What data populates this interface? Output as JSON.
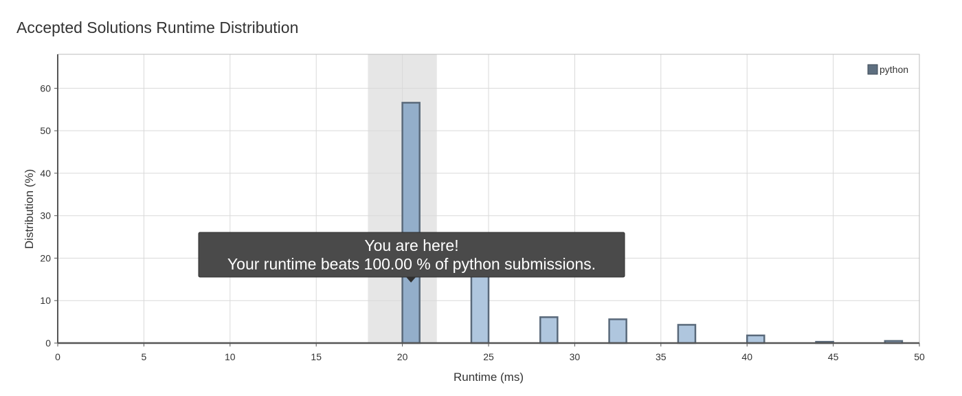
{
  "chart_data": {
    "type": "bar",
    "title": "Accepted Solutions Runtime Distribution",
    "xlabel": "Runtime (ms)",
    "ylabel": "Distribution (%)",
    "xlim": [
      0,
      50
    ],
    "ylim": [
      0,
      68
    ],
    "xticks": [
      0,
      5,
      10,
      15,
      20,
      25,
      30,
      35,
      40,
      45,
      50
    ],
    "yticks": [
      0,
      10,
      20,
      30,
      40,
      50,
      60
    ],
    "grid": true,
    "legend_position": "top-right",
    "bar_width": 1,
    "highlight_range": [
      18,
      22
    ],
    "highlight_x": 20.5,
    "series": [
      {
        "name": "python",
        "x": [
          20.5,
          24.5,
          28.5,
          32.5,
          36.5,
          40.5,
          44.5,
          48.5
        ],
        "values": [
          56.6,
          25.2,
          6.1,
          5.6,
          4.3,
          1.8,
          0.3,
          0.5
        ]
      }
    ],
    "colors": {
      "bar_fill": "#afc6de",
      "bar_highlight_fill": "#93aeca",
      "bar_stroke": "#59697a",
      "highlight_band": "#e6e6e6",
      "legend_swatch": "#5e6f80",
      "grid": "#d9d9d9",
      "axis": "#555555",
      "tooltip_bg": "#4a4a4a"
    },
    "annotation": {
      "line1": "You are here!",
      "line2": "Your runtime beats 100.00 % of python submissions."
    }
  }
}
